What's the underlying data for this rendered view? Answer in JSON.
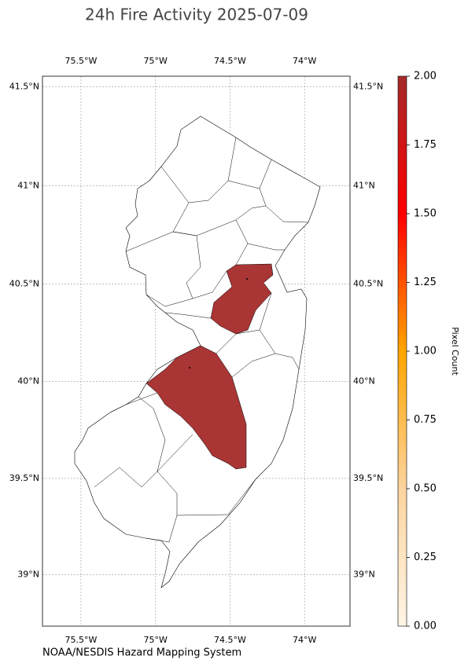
{
  "chart_data": {
    "type": "map",
    "title": "24h Fire Activity 2025-07-09",
    "source": "NOAA/NESDIS Hazard Mapping System",
    "xlim": [
      -75.758,
      -73.695
    ],
    "ylim": [
      38.73,
      41.553
    ],
    "xticks": [
      {
        "value": -75.5,
        "label": "75.5°W"
      },
      {
        "value": -75,
        "label": "75°W"
      },
      {
        "value": -74.5,
        "label": "74.5°W"
      },
      {
        "value": -74,
        "label": "74°W"
      }
    ],
    "yticks": [
      {
        "value": 41.5,
        "label": "41.5°N"
      },
      {
        "value": 41,
        "label": "41°N"
      },
      {
        "value": 40.5,
        "label": "40.5°N"
      },
      {
        "value": 40,
        "label": "40°N"
      },
      {
        "value": 39.5,
        "label": "39.5°N"
      },
      {
        "value": 39,
        "label": "39°N"
      }
    ],
    "grid": true,
    "colorbar": {
      "label": "Pixel Count",
      "lim": [
        0,
        2
      ],
      "colors": [
        "#fff5e6",
        "#fdd49e",
        "#ffa500",
        "#ff0000",
        "#a52a2a"
      ],
      "ticks": [
        {
          "value": 0,
          "label": "0.00"
        },
        {
          "value": 0.25,
          "label": "0.25"
        },
        {
          "value": 0.5,
          "label": "0.50"
        },
        {
          "value": 0.75,
          "label": "0.75"
        },
        {
          "value": 1,
          "label": "1.00"
        },
        {
          "value": 1.25,
          "label": "1.25"
        },
        {
          "value": 1.5,
          "label": "1.50"
        },
        {
          "value": 1.75,
          "label": "1.75"
        },
        {
          "value": 2,
          "label": "2.00"
        }
      ]
    }
  }
}
